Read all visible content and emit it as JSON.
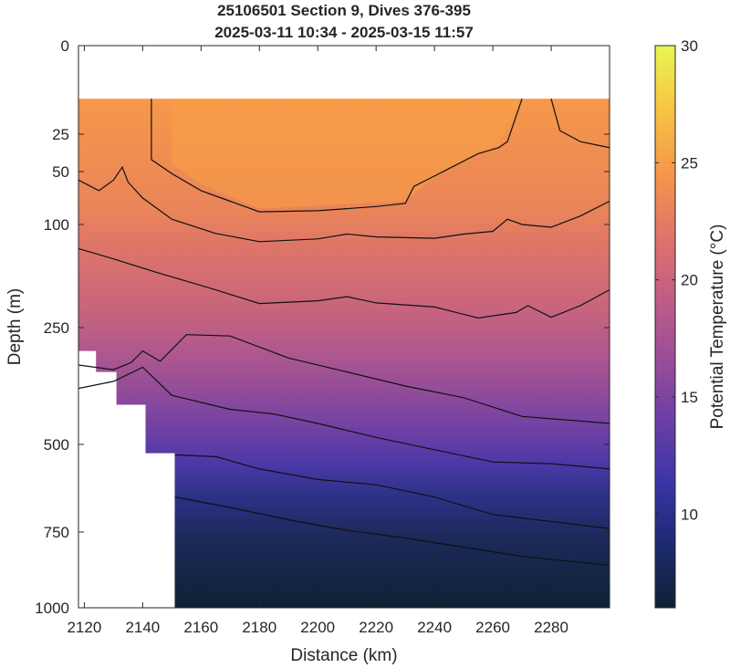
{
  "chart_data": {
    "type": "heatmap",
    "title_line1": "25106501 Section 9, Dives 376-395",
    "title_line2": "2025-03-11 10:34 - 2025-03-15 11:57",
    "xlabel": "Distance (km)",
    "ylabel": "Depth (m)",
    "colorbar_label": "Potential Temperature (°C)",
    "xlim": [
      2118,
      2300
    ],
    "ylim": [
      0,
      1000
    ],
    "y_scale": "sqrt-like (nonlinear)",
    "x_ticks": [
      2120,
      2140,
      2160,
      2180,
      2200,
      2220,
      2240,
      2260,
      2280
    ],
    "x_tick_labels": [
      "2120",
      "2140",
      "2160",
      "2180",
      "2200",
      "2220",
      "2240",
      "2260",
      "2280"
    ],
    "y_ticks": [
      0,
      25,
      50,
      100,
      250,
      500,
      750,
      1000
    ],
    "y_tick_labels": [
      "0",
      "25",
      "50",
      "100",
      "250",
      "500",
      "750",
      "1000"
    ],
    "colorbar_range": [
      6,
      30
    ],
    "colorbar_ticks": [
      10,
      15,
      20,
      25,
      30
    ],
    "colorbar_tick_labels": [
      "10",
      "15",
      "20",
      "25",
      "30"
    ],
    "colormap": "thermal",
    "colormap_stops": [
      "#0d2233",
      "#1c2a6e",
      "#3b34a8",
      "#6b3fa6",
      "#9a4e99",
      "#c25e85",
      "#e17568",
      "#f6984a",
      "#f7c544",
      "#e9f651"
    ],
    "data_top_depth": 15,
    "bathymetry_mask_steps": [
      {
        "x": 2118,
        "depth": 300
      },
      {
        "x": 2124,
        "depth": 345
      },
      {
        "x": 2131,
        "depth": 415
      },
      {
        "x": 2141,
        "depth": 525
      },
      {
        "x": 2151,
        "depth": 610
      },
      {
        "x": 2151,
        "depth": 1000
      }
    ],
    "contour_levels": [
      10,
      12,
      14,
      18,
      20,
      22,
      24
    ],
    "contours": [
      {
        "level": 24,
        "points": [
          [
            2143,
            15
          ],
          [
            2143,
            42
          ],
          [
            2150,
            52
          ],
          [
            2160,
            68
          ],
          [
            2170,
            78
          ],
          [
            2180,
            88
          ],
          [
            2200,
            87
          ],
          [
            2220,
            83
          ],
          [
            2230,
            80
          ],
          [
            2233,
            64
          ],
          [
            2238,
            57
          ],
          [
            2245,
            48
          ],
          [
            2255,
            38
          ],
          [
            2262,
            34
          ],
          [
            2265,
            30
          ],
          [
            2270,
            15
          ]
        ]
      },
      {
        "level": 24,
        "points": [
          [
            2280,
            15
          ],
          [
            2283,
            24
          ],
          [
            2290,
            30
          ],
          [
            2300,
            34
          ]
        ]
      },
      {
        "level": 22,
        "points": [
          [
            2118,
            58
          ],
          [
            2125,
            68
          ],
          [
            2130,
            58
          ],
          [
            2133,
            47
          ],
          [
            2135,
            60
          ],
          [
            2140,
            75
          ],
          [
            2150,
            95
          ],
          [
            2165,
            113
          ],
          [
            2180,
            125
          ],
          [
            2200,
            121
          ],
          [
            2210,
            114
          ],
          [
            2220,
            118
          ],
          [
            2240,
            120
          ],
          [
            2250,
            114
          ],
          [
            2260,
            110
          ],
          [
            2265,
            95
          ],
          [
            2270,
            100
          ],
          [
            2280,
            104
          ],
          [
            2290,
            92
          ],
          [
            2300,
            78
          ]
        ]
      },
      {
        "level": 20,
        "points": [
          [
            2118,
            135
          ],
          [
            2130,
            150
          ],
          [
            2145,
            170
          ],
          [
            2165,
            195
          ],
          [
            2180,
            215
          ],
          [
            2200,
            211
          ],
          [
            2210,
            205
          ],
          [
            2220,
            214
          ],
          [
            2240,
            220
          ],
          [
            2255,
            236
          ],
          [
            2268,
            228
          ],
          [
            2272,
            218
          ],
          [
            2280,
            235
          ],
          [
            2290,
            218
          ],
          [
            2300,
            195
          ]
        ]
      },
      {
        "level": 18,
        "points": [
          [
            2118,
            330
          ],
          [
            2130,
            340
          ],
          [
            2136,
            325
          ],
          [
            2140,
            300
          ],
          [
            2146,
            322
          ],
          [
            2155,
            265
          ],
          [
            2170,
            268
          ],
          [
            2190,
            315
          ],
          [
            2210,
            345
          ],
          [
            2230,
            375
          ],
          [
            2250,
            400
          ],
          [
            2270,
            440
          ],
          [
            2290,
            450
          ],
          [
            2300,
            455
          ]
        ]
      },
      {
        "level": 14,
        "points": [
          [
            2118,
            380
          ],
          [
            2130,
            365
          ],
          [
            2140,
            335
          ],
          [
            2150,
            395
          ],
          [
            2170,
            425
          ],
          [
            2185,
            435
          ],
          [
            2200,
            455
          ],
          [
            2220,
            485
          ],
          [
            2240,
            515
          ],
          [
            2260,
            550
          ],
          [
            2280,
            555
          ],
          [
            2300,
            570
          ]
        ]
      },
      {
        "level": 12,
        "points": [
          [
            2151,
            530
          ],
          [
            2165,
            535
          ],
          [
            2180,
            570
          ],
          [
            2200,
            600
          ],
          [
            2220,
            615
          ],
          [
            2240,
            650
          ],
          [
            2260,
            700
          ],
          [
            2280,
            720
          ],
          [
            2300,
            740
          ]
        ]
      },
      {
        "level": 10,
        "points": [
          [
            2151,
            650
          ],
          [
            2170,
            680
          ],
          [
            2190,
            715
          ],
          [
            2210,
            745
          ],
          [
            2230,
            770
          ],
          [
            2250,
            800
          ],
          [
            2270,
            830
          ],
          [
            2290,
            850
          ],
          [
            2300,
            860
          ]
        ]
      }
    ]
  }
}
